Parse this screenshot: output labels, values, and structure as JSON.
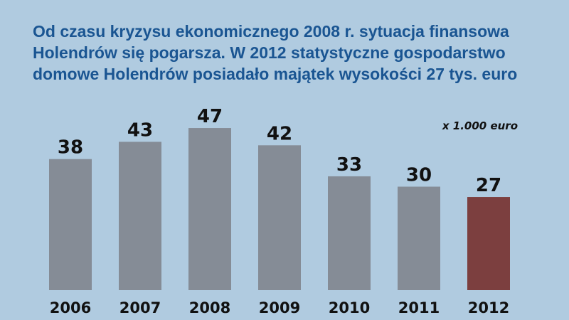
{
  "chart_data": {
    "type": "bar",
    "title": [
      "Od czasu kryzysu ekonomicznego 2008 r.  sytuacja finansowa",
      "Holendrów się pogarsza. W 2012 statystyczne gospodarstwo",
      "domowe Holendrów posiadało majątek wysokości 27 tys. euro"
    ],
    "unit_label": "x 1.000 euro",
    "categories": [
      "2006",
      "2007",
      "2008",
      "2009",
      "2010",
      "2011",
      "2012"
    ],
    "values": [
      38,
      43,
      47,
      42,
      33,
      30,
      27
    ],
    "colors": [
      "#858c96",
      "#858c96",
      "#858c96",
      "#858c96",
      "#858c96",
      "#858c96",
      "#7c3f3f"
    ]
  }
}
